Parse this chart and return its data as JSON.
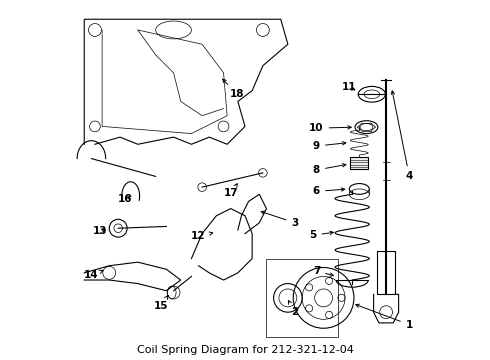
{
  "title": "212-321-12-04",
  "title_prefix": "Coil Spring Diagram for ",
  "background_color": "#ffffff",
  "line_color": "#000000",
  "text_color": "#000000",
  "fig_width": 4.9,
  "fig_height": 3.6,
  "dpi": 100,
  "subtitle_fontsize": 8,
  "label_fontsize": 7.5
}
